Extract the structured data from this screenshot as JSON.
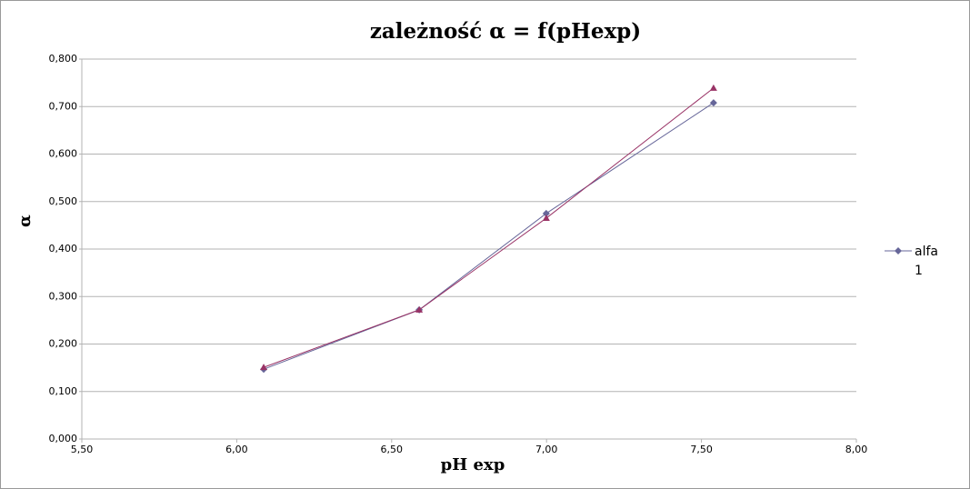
{
  "chart_data": {
    "type": "line",
    "title": "zależność α = f(pHexp)",
    "x_label": "pH exp",
    "y_label": "α",
    "x": [
      6.087,
      6.589,
      6.999,
      7.539
    ],
    "series": [
      {
        "name": "alfa 1",
        "color": "#666699",
        "marker": "diamond",
        "values": [
          0.147,
          0.272,
          0.475,
          0.708
        ]
      },
      {
        "color": "#993366",
        "marker": "triangle",
        "values": [
          0.151,
          0.272,
          0.465,
          0.739
        ]
      }
    ],
    "xlim": [
      5.5,
      8.0
    ],
    "xticks": [
      {
        "value": 5.5,
        "label": "5,50"
      },
      {
        "value": 6.0,
        "label": "6,00"
      },
      {
        "value": 6.5,
        "label": "6,50"
      },
      {
        "value": 7.0,
        "label": "7,00"
      },
      {
        "value": 7.5,
        "label": "7,50"
      },
      {
        "value": 8.0,
        "label": "8,00"
      }
    ],
    "ylim": [
      0,
      0.8
    ],
    "yticks": [
      {
        "value": 0,
        "label": "0,000"
      },
      {
        "value": 0.1,
        "label": "0,100"
      },
      {
        "value": 0.2,
        "label": "0,200"
      },
      {
        "value": 0.3,
        "label": "0,300"
      },
      {
        "value": 0.4,
        "label": "0,400"
      },
      {
        "value": 0.5,
        "label": "0,500"
      },
      {
        "value": 0.6,
        "label": "0,600"
      },
      {
        "value": 0.7,
        "label": "0,700"
      },
      {
        "value": 0.8,
        "label": "0,800"
      }
    ],
    "grid": true,
    "legend": "right"
  }
}
